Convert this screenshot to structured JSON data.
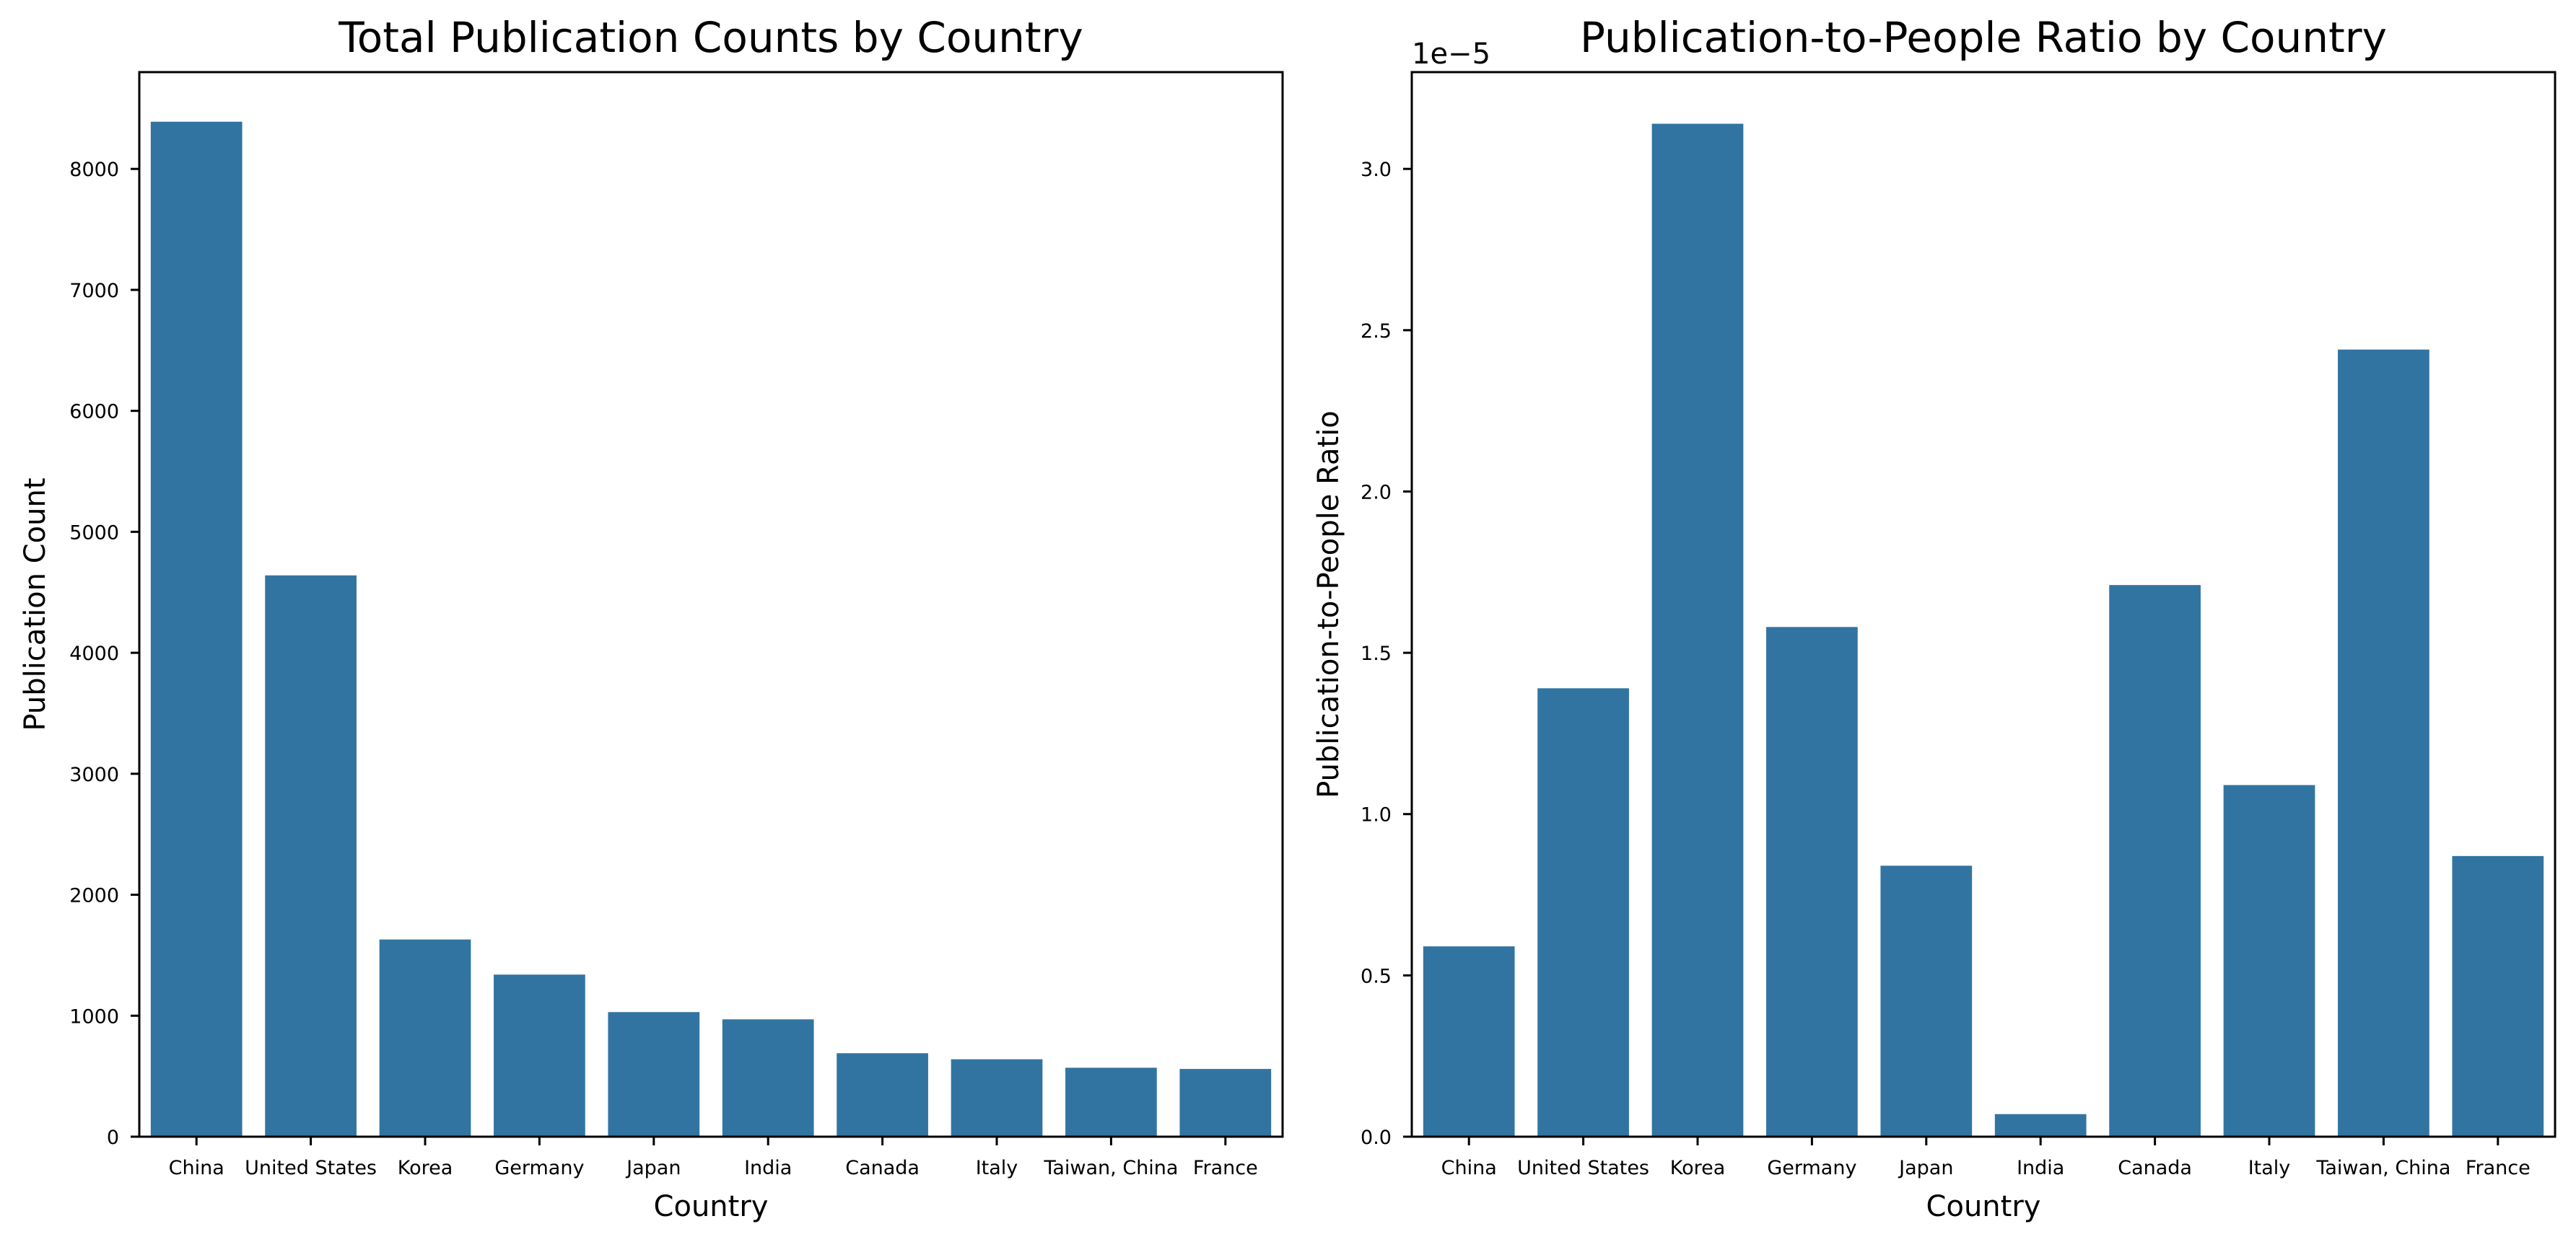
{
  "chart_data": [
    {
      "type": "bar",
      "title": "Total Publication Counts by Country",
      "xlabel": "Country",
      "ylabel": "Publication Count",
      "categories": [
        "China",
        "United States",
        "Korea",
        "Germany",
        "Japan",
        "India",
        "Canada",
        "Italy",
        "Taiwan, China",
        "France"
      ],
      "values": [
        8390,
        4640,
        1630,
        1340,
        1030,
        970,
        690,
        640,
        570,
        560
      ],
      "ylim": [
        0,
        8800
      ],
      "yticks": [
        0,
        1000,
        2000,
        3000,
        4000,
        5000,
        6000,
        7000,
        8000
      ],
      "ytick_labels": [
        "0",
        "1000",
        "2000",
        "3000",
        "4000",
        "5000",
        "6000",
        "7000",
        "8000"
      ],
      "offset_label": "",
      "bar_color": "#3274a1",
      "grid": false
    },
    {
      "type": "bar",
      "title": "Publication-to-People Ratio by Country",
      "xlabel": "Country",
      "ylabel": "Publication-to-People Ratio",
      "categories": [
        "China",
        "United States",
        "Korea",
        "Germany",
        "Japan",
        "India",
        "Canada",
        "Italy",
        "Taiwan, China",
        "France"
      ],
      "values": [
        5.9e-06,
        1.39e-05,
        3.14e-05,
        1.58e-05,
        8.4e-06,
        7e-07,
        1.71e-05,
        1.09e-05,
        2.44e-05,
        8.7e-06
      ],
      "ylim": [
        0,
        3.3e-05
      ],
      "yticks": [
        0,
        5e-06,
        1e-05,
        1.5e-05,
        2e-05,
        2.5e-05,
        3e-05
      ],
      "ytick_labels": [
        "0.0",
        "0.5",
        "1.0",
        "1.5",
        "2.0",
        "2.5",
        "3.0"
      ],
      "offset_label": "1e−5",
      "bar_color": "#3274a1",
      "grid": false
    }
  ]
}
